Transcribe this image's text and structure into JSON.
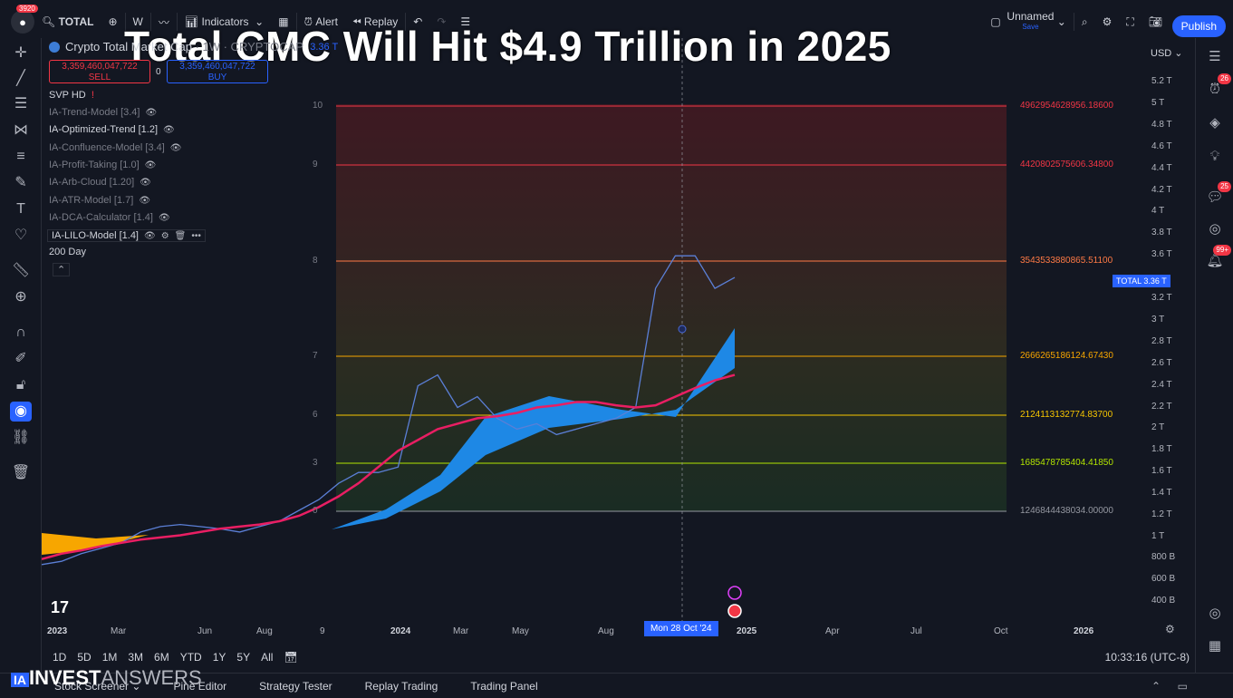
{
  "topbar": {
    "avatar_badge": "3920",
    "symbol": "TOTAL",
    "interval": "W",
    "indicators_label": "Indicators",
    "alert_label": "Alert",
    "replay_label": "Replay",
    "layout_name": "Unnamed",
    "layout_status": "Save",
    "publish_label": "Publish"
  },
  "headline": "Total CMC Will Hit $4.9 Trillion in 2025",
  "legend": {
    "symbol_name": "Crypto Total Market Cap",
    "exchange": "· 1W · CRYPTOCAP",
    "price": "3.36 T",
    "sell_price": "3,359,460,047,722",
    "sell_label": "SELL",
    "spread": "0",
    "buy_price": "3,359,460,047,722",
    "buy_label": "BUY",
    "svp": "SVP HD",
    "indicators": [
      {
        "label": "IA-Trend-Model [3.4]",
        "active": false
      },
      {
        "label": "IA-Optimized-Trend [1.2]",
        "active": true
      },
      {
        "label": "IA-Confluence-Model [3.4]",
        "active": false
      },
      {
        "label": "IA-Profit-Taking [1.0]",
        "active": false
      },
      {
        "label": "IA-Arb-Cloud [1.20]",
        "active": false
      },
      {
        "label": "IA-ATR-Model [1.7]",
        "active": false
      },
      {
        "label": "IA-DCA-Calculator [1.4]",
        "active": false
      },
      {
        "label": "IA-LILO-Model [1.4]",
        "active": true
      }
    ],
    "extra": "200 Day"
  },
  "yaxis": {
    "currency": "USD",
    "ticks": [
      "5.2 T",
      "5 T",
      "4.8 T",
      "4.6 T",
      "4.4 T",
      "4.2 T",
      "4 T",
      "3.8 T",
      "3.6 T",
      "3.2 T",
      "3 T",
      "2.8 T",
      "2.6 T",
      "2.4 T",
      "2.2 T",
      "2 T",
      "1.8 T",
      "1.6 T",
      "1.4 T",
      "1.2 T",
      "1 T",
      "800 B",
      "600 B",
      "400 B"
    ],
    "total_tag": "TOTAL   3.36 T"
  },
  "xaxis": {
    "ticks": [
      "2023",
      "Mar",
      "Jun",
      "Aug",
      "9",
      "2024",
      "Mar",
      "May",
      "Aug",
      "2025",
      "Apr",
      "Jul",
      "Oct",
      "2026"
    ],
    "crosshair_label": "Mon 28 Oct '24"
  },
  "fib": {
    "levels": [
      {
        "level": "10",
        "price": "4962954628956.18600",
        "color": "#f23645"
      },
      {
        "level": "9",
        "price": "4420802575606.34800",
        "color": "#f23645"
      },
      {
        "level": "8",
        "price": "3543533880865.51100",
        "color": "#ff7a45"
      },
      {
        "level": "7",
        "price": "2666265186124.67430",
        "color": "#f7a600"
      },
      {
        "level": "6",
        "price": "2124113132774.83700",
        "color": "#f7c600"
      },
      {
        "level": "3",
        "price": "1685478785404.41850",
        "color": "#b3e600"
      },
      {
        "level": "0",
        "price": "1246844438034.00000",
        "color": "#9598a1"
      }
    ]
  },
  "chart_data": {
    "type": "line",
    "series": [
      {
        "values": [
          0.75,
          0.78,
          0.85,
          0.9,
          0.95,
          1.05,
          1.1,
          1.12,
          1.1,
          1.08,
          1.05,
          1.1,
          1.15,
          1.25,
          1.35,
          1.5,
          1.6,
          1.6,
          1.65,
          2.4,
          2.5,
          2.2,
          2.3,
          2.1,
          2.0,
          2.05,
          1.95,
          2.0,
          2.05,
          2.1,
          2.2,
          3.3,
          3.6,
          3.6,
          3.3,
          3.4
        ]
      },
      {
        "values": [
          0.8,
          0.85,
          0.88,
          0.92,
          0.95,
          0.98,
          1.0,
          1.02,
          1.05,
          1.08,
          1.1,
          1.12,
          1.15,
          1.2,
          1.28,
          1.38,
          1.5,
          1.65,
          1.8,
          1.9,
          2.0,
          2.05,
          2.1,
          2.12,
          2.15,
          2.2,
          2.22,
          2.25,
          2.25,
          2.22,
          2.2,
          2.22,
          2.3,
          2.38,
          2.45,
          2.5
        ]
      }
    ]
  },
  "bottombar": {
    "ranges": [
      "1D",
      "5D",
      "1M",
      "3M",
      "6M",
      "YTD",
      "1Y",
      "5Y",
      "All"
    ],
    "time": "10:33:16 (UTC-8)"
  },
  "footer": {
    "tabs": [
      "Stock Screener",
      "Pine Editor",
      "Strategy Tester",
      "Replay Trading",
      "Trading Panel"
    ]
  },
  "watermark": {
    "bold": "INVEST",
    "thin": "ANSWERS"
  },
  "right_badges": {
    "alerts": "26",
    "chat": "25",
    "notifications": "99+"
  }
}
